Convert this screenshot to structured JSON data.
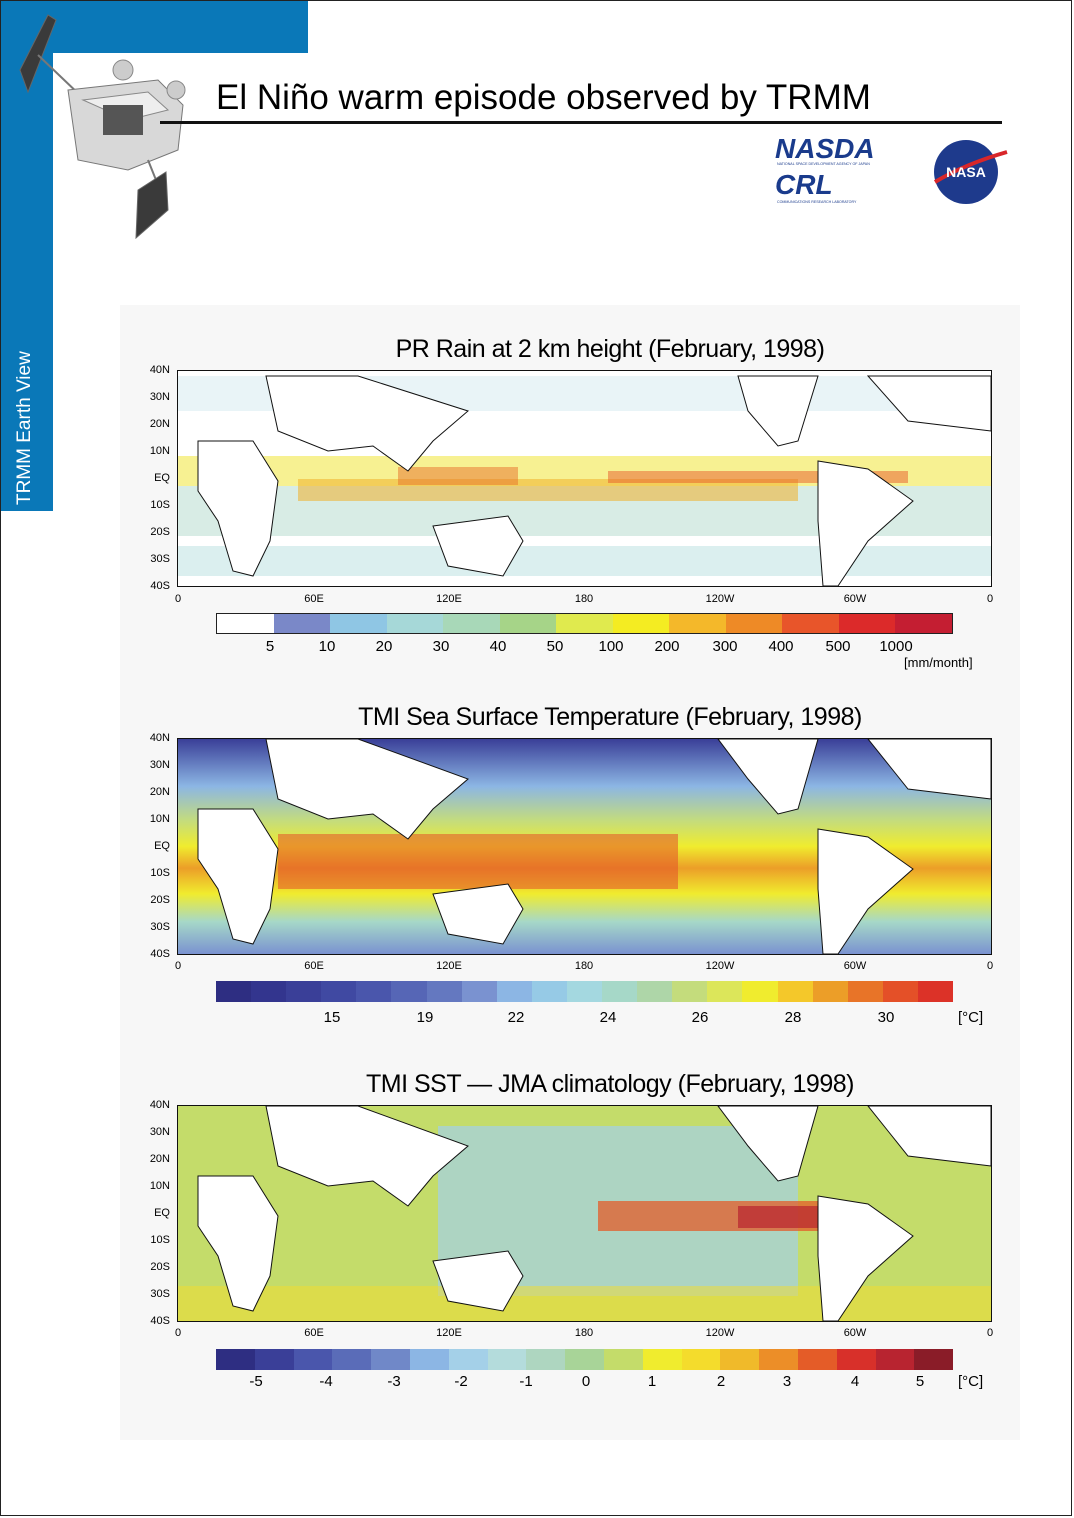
{
  "page": {
    "side_label": "TRMM Earth View",
    "title": "El Niño warm episode observed by TRMM"
  },
  "logos": {
    "nasda": "NASDA",
    "crl": "CRL",
    "nasa": "NASA",
    "nasda_sub": "NATIONAL SPACE DEVELOPMENT AGENCY OF JAPAN",
    "crl_sub": "COMMUNICATIONS RESEARCH LABORATORY"
  },
  "axes": {
    "lat_labels": [
      "40N",
      "30N",
      "20N",
      "10N",
      "EQ",
      "10S",
      "20S",
      "30S",
      "40S"
    ],
    "lon_labels": [
      "0",
      "60E",
      "120E",
      "180",
      "120W",
      "60W",
      "0"
    ]
  },
  "panels": [
    {
      "title": "PR Rain at 2 km height (February, 1998)",
      "colorbar_colors": [
        "#ffffff",
        "#7a88c8",
        "#8fc6e4",
        "#a6d8d8",
        "#a8d8b8",
        "#a6d488",
        "#e0ea4e",
        "#f4ec22",
        "#f4b82a",
        "#ee8a26",
        "#e8552a",
        "#dc2a2a",
        "#c41e32"
      ],
      "colorbar_ticks": [
        "5",
        "10",
        "20",
        "30",
        "40",
        "50",
        "100",
        "200",
        "300",
        "400",
        "500",
        "1000"
      ],
      "unit": "[mm/month]"
    },
    {
      "title": "TMI Sea Surface Temperature (February, 1998)",
      "colorbar_colors": [
        "#2e2e82",
        "#33358e",
        "#3a3f98",
        "#4049a2",
        "#4a56ac",
        "#5666b6",
        "#6478c0",
        "#7a92d0",
        "#8cb6e4",
        "#96cae6",
        "#a4d8e0",
        "#a6d8c8",
        "#aed6a8",
        "#c4dc7c",
        "#dce65a",
        "#f0ec2e",
        "#f4c82a",
        "#ec9e28",
        "#e87428",
        "#e45028",
        "#dc3228"
      ],
      "colorbar_ticks": [
        "15",
        "19",
        "22",
        "24",
        "26",
        "28",
        "30"
      ],
      "unit": "[°C]"
    },
    {
      "title": "TMI SST — JMA climatology (February, 1998)",
      "colorbar_colors": [
        "#2e2e82",
        "#3a3f98",
        "#4a56ac",
        "#5a6cb8",
        "#7088c8",
        "#8cb6e4",
        "#a4d0e8",
        "#b4dcdc",
        "#aed6c0",
        "#a8d498",
        "#c4dc6a",
        "#f0ec2e",
        "#f4dc2c",
        "#f0ba2a",
        "#ec8e28",
        "#e45c28",
        "#d8302a",
        "#b82430",
        "#8a1c28"
      ],
      "colorbar_ticks": [
        "-5",
        "-4",
        "-3",
        "-2",
        "-1",
        "0",
        "1",
        "2",
        "3",
        "4",
        "5"
      ],
      "unit": "[°C]"
    }
  ]
}
